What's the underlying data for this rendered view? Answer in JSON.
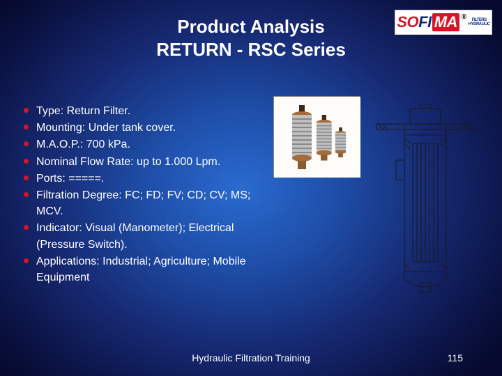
{
  "slide": {
    "title_line1": "Product Analysis",
    "title_line2": "RETURN - RSC Series",
    "title_color": "#ffffff",
    "title_fontsize": 26,
    "bullet_color": "#d81324",
    "bullet_text_color": "#ffffff",
    "bullet_fontsize": 16,
    "bullets": [
      "Type: Return Filter.",
      "Mounting: Under tank cover.",
      "M.A.O.P.: 700 kPa.",
      "Nominal Flow Rate: up to 1.000 Lpm.",
      "Ports: =====.",
      "Filtration Degree: FC; FD; FV; CD; CV; MS; MCV.",
      "Indicator: Visual (Manometer); Electrical (Pressure Switch).",
      "Applications: Industrial; Agriculture; Mobile Equipment"
    ],
    "footer_text": "Hydraulic Filtration Training",
    "page_number": "115",
    "footer_fontsize": 14,
    "background_gradient": {
      "center": "#2a6bd0",
      "mid": "#1e4ea8",
      "outer": "#162870",
      "edge": "#060a2e"
    }
  },
  "logo": {
    "part_so": "SO",
    "part_fi": "FI",
    "part_ma": "MA",
    "reg": "®",
    "side_top": "FILTERS",
    "side_bottom": "HYDRAULIC",
    "red": "#d81324",
    "blue": "#0a2a7a",
    "bg": "#ffffff"
  },
  "photo": {
    "bg": "#fefdfb",
    "filter_colors": {
      "copper": "#a66b3a",
      "grey": "#9a9a9a",
      "dark": "#3a2a1a"
    }
  },
  "diagram": {
    "stroke": "#1a1a1a",
    "stroke_width": 1.2,
    "fill": "none"
  }
}
